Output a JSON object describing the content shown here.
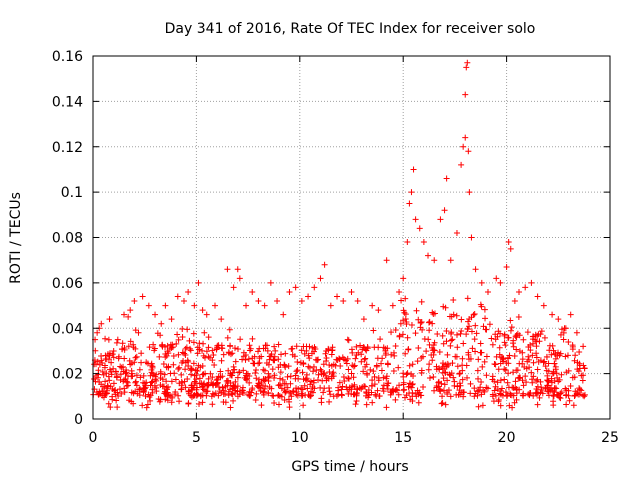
{
  "chart_data": {
    "type": "scatter",
    "title": "Day 341 of 2016, Rate Of TEC Index for receiver solo",
    "xlabel": "GPS time / hours",
    "ylabel": "ROTI / TECUs",
    "xlim": [
      0,
      25
    ],
    "ylim": [
      0,
      0.16
    ],
    "xticks": [
      0,
      5,
      10,
      15,
      20,
      25
    ],
    "xtick_labels": [
      "0",
      "5",
      "10",
      "15",
      "20",
      "25"
    ],
    "yticks": [
      0,
      0.02,
      0.04,
      0.06,
      0.08,
      0.1,
      0.12,
      0.14,
      0.16
    ],
    "ytick_labels": [
      "0",
      "0.02",
      "0.04",
      "0.06",
      "0.08",
      "0.1",
      "0.12",
      "0.14",
      "0.16"
    ],
    "grid": true,
    "marker": "plus",
    "marker_color": "#ff0000",
    "series": [
      {
        "name": "ROTI",
        "points": [
          [
            0.1,
            0.035
          ],
          [
            0.2,
            0.038
          ],
          [
            0.3,
            0.04
          ],
          [
            0.4,
            0.042
          ],
          [
            0.6,
            0.028
          ],
          [
            0.8,
            0.044
          ],
          [
            1.0,
            0.03
          ],
          [
            1.2,
            0.035
          ],
          [
            1.5,
            0.046
          ],
          [
            1.7,
            0.045
          ],
          [
            1.8,
            0.048
          ],
          [
            2.0,
            0.052
          ],
          [
            2.2,
            0.038
          ],
          [
            2.4,
            0.054
          ],
          [
            2.7,
            0.05
          ],
          [
            3.0,
            0.046
          ],
          [
            3.3,
            0.042
          ],
          [
            3.5,
            0.05
          ],
          [
            3.8,
            0.044
          ],
          [
            4.1,
            0.054
          ],
          [
            4.4,
            0.052
          ],
          [
            4.6,
            0.056
          ],
          [
            4.9,
            0.05
          ],
          [
            5.1,
            0.06
          ],
          [
            5.3,
            0.048
          ],
          [
            5.5,
            0.046
          ],
          [
            5.9,
            0.05
          ],
          [
            6.2,
            0.044
          ],
          [
            6.5,
            0.066
          ],
          [
            6.8,
            0.058
          ],
          [
            7.0,
            0.066
          ],
          [
            7.1,
            0.062
          ],
          [
            7.4,
            0.05
          ],
          [
            7.7,
            0.056
          ],
          [
            8.0,
            0.052
          ],
          [
            8.3,
            0.05
          ],
          [
            8.6,
            0.06
          ],
          [
            8.9,
            0.052
          ],
          [
            9.2,
            0.046
          ],
          [
            9.5,
            0.056
          ],
          [
            9.8,
            0.058
          ],
          [
            10.1,
            0.052
          ],
          [
            10.4,
            0.054
          ],
          [
            10.7,
            0.058
          ],
          [
            11.0,
            0.062
          ],
          [
            11.2,
            0.068
          ],
          [
            11.5,
            0.05
          ],
          [
            11.8,
            0.054
          ],
          [
            12.1,
            0.052
          ],
          [
            12.5,
            0.056
          ],
          [
            12.8,
            0.052
          ],
          [
            13.1,
            0.044
          ],
          [
            13.5,
            0.05
          ],
          [
            13.8,
            0.048
          ],
          [
            14.2,
            0.07
          ],
          [
            14.5,
            0.05
          ],
          [
            14.8,
            0.056
          ],
          [
            15.0,
            0.062
          ],
          [
            15.2,
            0.078
          ],
          [
            15.3,
            0.095
          ],
          [
            15.4,
            0.1
          ],
          [
            15.5,
            0.11
          ],
          [
            15.6,
            0.088
          ],
          [
            15.8,
            0.084
          ],
          [
            16.0,
            0.078
          ],
          [
            16.2,
            0.072
          ],
          [
            16.5,
            0.07
          ],
          [
            16.8,
            0.088
          ],
          [
            17.0,
            0.092
          ],
          [
            17.1,
            0.106
          ],
          [
            17.3,
            0.07
          ],
          [
            17.6,
            0.082
          ],
          [
            17.8,
            0.112
          ],
          [
            17.9,
            0.12
          ],
          [
            18.0,
            0.124
          ],
          [
            18.0,
            0.143
          ],
          [
            18.05,
            0.155
          ],
          [
            18.1,
            0.157
          ],
          [
            18.15,
            0.118
          ],
          [
            18.2,
            0.1
          ],
          [
            18.3,
            0.08
          ],
          [
            18.5,
            0.066
          ],
          [
            18.8,
            0.06
          ],
          [
            19.1,
            0.056
          ],
          [
            19.5,
            0.062
          ],
          [
            19.7,
            0.06
          ],
          [
            20.0,
            0.067
          ],
          [
            20.1,
            0.078
          ],
          [
            20.2,
            0.075
          ],
          [
            20.4,
            0.052
          ],
          [
            20.6,
            0.056
          ],
          [
            20.9,
            0.058
          ],
          [
            21.2,
            0.06
          ],
          [
            21.5,
            0.054
          ],
          [
            21.8,
            0.05
          ],
          [
            22.2,
            0.046
          ],
          [
            22.5,
            0.044
          ],
          [
            22.8,
            0.04
          ],
          [
            23.1,
            0.046
          ],
          [
            23.4,
            0.038
          ],
          [
            23.7,
            0.032
          ]
        ],
        "band": {
          "x_range": [
            0,
            23.8
          ],
          "typical_y": [
            0.005,
            0.04
          ],
          "point_count": 1400
        }
      }
    ]
  }
}
